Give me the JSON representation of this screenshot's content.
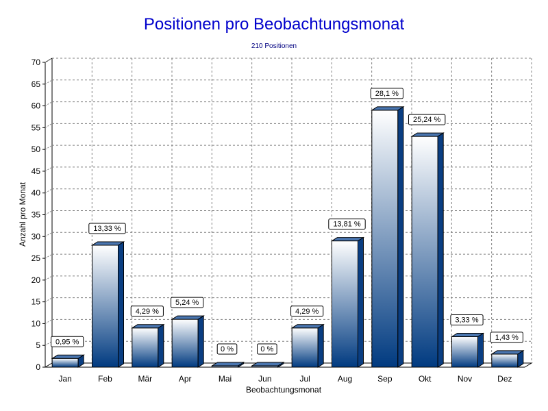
{
  "chart_data": {
    "type": "bar",
    "title": "Positionen pro Beobachtungsmonat",
    "subtitle": "210 Positionen",
    "xlabel": "Beobachtungsmonat",
    "ylabel": "Anzahl pro Monat",
    "ylim": [
      0,
      70
    ],
    "yticks": [
      0,
      5,
      10,
      15,
      20,
      25,
      30,
      35,
      40,
      45,
      50,
      55,
      60,
      65,
      70
    ],
    "grid": true,
    "categories": [
      "Jan",
      "Feb",
      "Mär",
      "Apr",
      "Mai",
      "Jun",
      "Jul",
      "Aug",
      "Sep",
      "Okt",
      "Nov",
      "Dez"
    ],
    "values": [
      2,
      28,
      9,
      11,
      0,
      0,
      9,
      29,
      59,
      53,
      7,
      3
    ],
    "data_labels": [
      "0,95 %",
      "13,33 %",
      "4,29 %",
      "5,24 %",
      "0 %",
      "0 %",
      "4,29 %",
      "13,81 %",
      "28,1 %",
      "25,24 %",
      "3,33 %",
      "1,43 %"
    ],
    "colors": {
      "bar_top": "#ffffff",
      "bar_bottom": "#003a80",
      "side": "#0a3e82",
      "cap": "#4a76b0",
      "grid": "#808080"
    }
  }
}
